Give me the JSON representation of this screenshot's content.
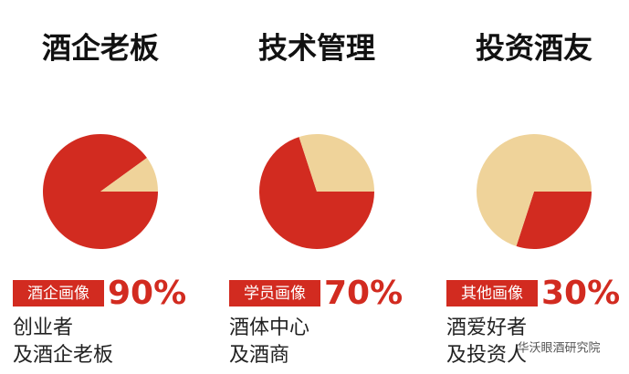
{
  "chart_data": [
    {
      "type": "pie",
      "title": "酒企老板",
      "tag": "酒企画像",
      "values": [
        90,
        10
      ],
      "value_labels": [
        "90%",
        null
      ],
      "colors": [
        "#d22b20",
        "#efd39a"
      ],
      "description": [
        "创业者",
        "及酒企老板"
      ]
    },
    {
      "type": "pie",
      "title": "技术管理",
      "tag": "学员画像",
      "values": [
        70,
        30
      ],
      "value_labels": [
        "70%",
        null
      ],
      "colors": [
        "#d22b20",
        "#efd39a"
      ],
      "description": [
        "酒体中心",
        "及酒商"
      ]
    },
    {
      "type": "pie",
      "title": "投资酒友",
      "tag": "其他画像",
      "values": [
        30,
        70
      ],
      "value_labels": [
        "30%",
        null
      ],
      "colors": [
        "#d22b20",
        "#efd39a"
      ],
      "description": [
        "酒爱好者",
        "及投资人"
      ]
    }
  ],
  "watermark": "华沃眼酒研究院"
}
